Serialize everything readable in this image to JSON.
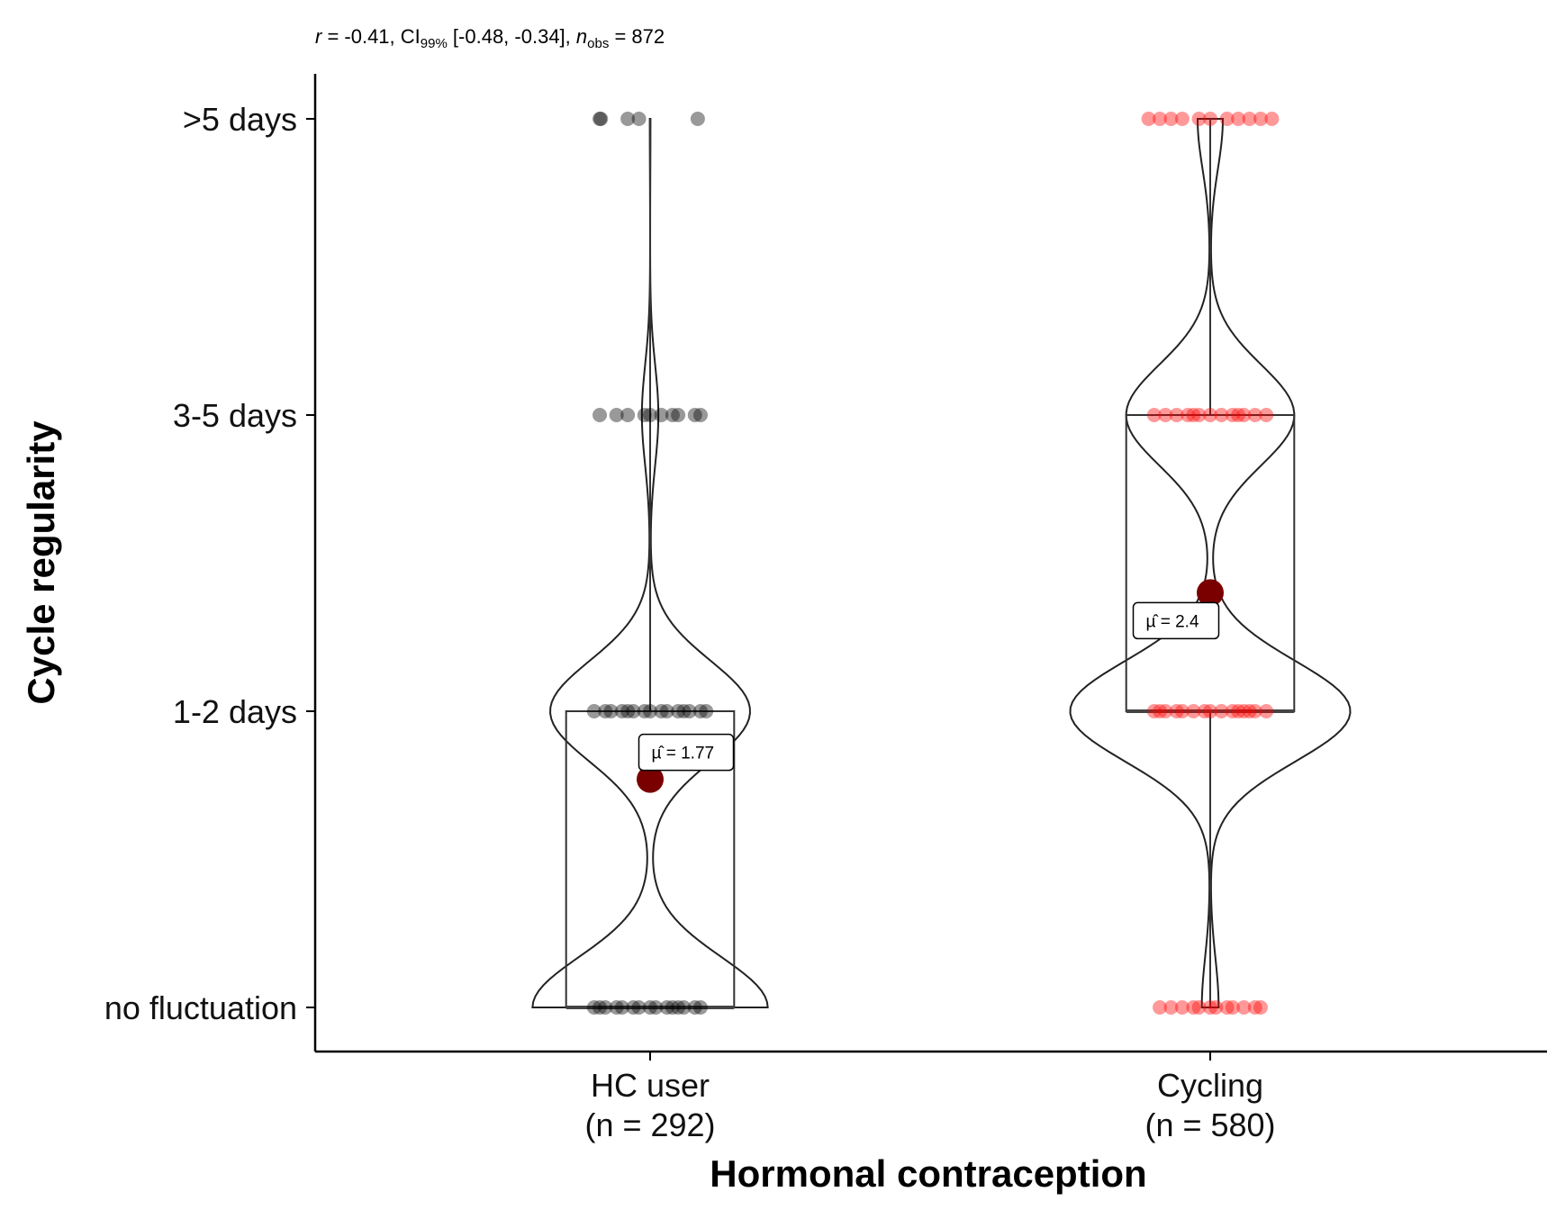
{
  "chart_data": {
    "type": "violin",
    "subtitle": {
      "r_hat": "r",
      "r_rest": " = -0.41, CI",
      "ci_sub": "99%",
      "ci_rest": " [-0.48, -0.34], ",
      "n_label": "n",
      "n_sub": "obs",
      "n_rest": " = 872"
    },
    "xlabel": "Hormonal contraception",
    "ylabel": "Cycle regularity",
    "y_levels": [
      "no fluctuation",
      "1-2 days",
      "3-5 days",
      ">5 days"
    ],
    "ylim": [
      0.85,
      4.15
    ],
    "groups": [
      {
        "name": "HC user",
        "n_label": "(n = 292)",
        "color": "#000000",
        "mean": 1.77,
        "mean_label": "= 1.77",
        "box": {
          "q1": 1,
          "median": 1,
          "q3": 2,
          "lower": 1,
          "upper": 4
        },
        "level_density": [
          1.0,
          0.85,
          0.07,
          0.003
        ],
        "half_width": 0.21,
        "jitter": [
          {
            "level": 1,
            "x_offsets": [
              -0.1,
              -0.08,
              -0.06,
              -0.05,
              -0.03,
              -0.02,
              0.0,
              0.01,
              0.03,
              0.04,
              0.06,
              0.08,
              0.09,
              -0.09,
              0.05
            ]
          },
          {
            "level": 2,
            "x_offsets": [
              -0.1,
              -0.08,
              -0.07,
              -0.05,
              -0.03,
              -0.01,
              0.0,
              0.02,
              0.03,
              0.05,
              0.07,
              0.09,
              0.1,
              -0.04,
              0.06
            ]
          },
          {
            "level": 3,
            "x_offsets": [
              -0.09,
              -0.06,
              -0.04,
              -0.01,
              0.0,
              0.02,
              0.04,
              0.05,
              0.08,
              0.09
            ]
          },
          {
            "level": 4,
            "x_offsets": [
              -0.09,
              -0.088,
              -0.04,
              -0.02,
              0.085
            ]
          }
        ]
      },
      {
        "name": "Cycling",
        "n_label": "(n = 580)",
        "color": "#ff0000",
        "mean": 2.4,
        "mean_label": "= 2.4",
        "box": {
          "q1": 2,
          "median": 2,
          "q3": 3,
          "lower": 1,
          "upper": 4
        },
        "level_density": [
          0.06,
          1.0,
          0.6,
          0.09
        ],
        "half_width": 0.25,
        "jitter": [
          {
            "level": 1,
            "x_offsets": [
              -0.09,
              -0.07,
              -0.05,
              -0.03,
              -0.02,
              0.0,
              0.01,
              0.03,
              0.04,
              0.06,
              0.08,
              0.09
            ]
          },
          {
            "level": 2,
            "x_offsets": [
              -0.1,
              -0.08,
              -0.06,
              -0.05,
              -0.03,
              -0.01,
              0.0,
              0.02,
              0.04,
              0.05,
              0.07,
              0.08,
              0.1,
              -0.09,
              0.06
            ]
          },
          {
            "level": 3,
            "x_offsets": [
              -0.1,
              -0.08,
              -0.06,
              -0.04,
              -0.02,
              0.0,
              0.02,
              0.04,
              0.06,
              0.08,
              0.1,
              -0.03,
              0.05
            ]
          },
          {
            "level": 4,
            "x_offsets": [
              -0.11,
              -0.09,
              -0.07,
              -0.05,
              -0.02,
              0.0,
              0.03,
              0.05,
              0.07,
              0.09,
              0.11
            ]
          }
        ]
      }
    ],
    "mean_point_color": "#7a0000"
  }
}
